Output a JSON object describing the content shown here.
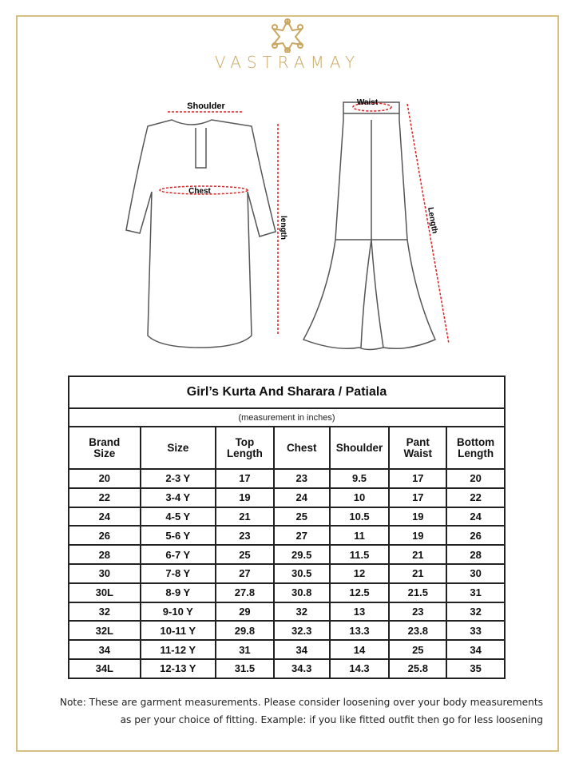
{
  "brand": {
    "name": "VASTRAMAY",
    "accent": "#c9a760"
  },
  "diagram": {
    "shoulder": "Shoulder",
    "chest": "Chest",
    "kurta_length": "length",
    "waist": "Waist",
    "pant_length": "Length"
  },
  "table": {
    "title": "Girl’s Kurta And Sharara / Patiala",
    "subtitle": "(measurement in inches)",
    "headers": [
      [
        "Brand",
        "Size"
      ],
      [
        "Size"
      ],
      [
        "Top",
        "Length"
      ],
      [
        "Chest"
      ],
      [
        "Shoulder"
      ],
      [
        "Pant",
        "Waist"
      ],
      [
        "Bottom",
        "Length"
      ]
    ],
    "rows": [
      [
        "20",
        "2-3 Y",
        "17",
        "23",
        "9.5",
        "17",
        "20"
      ],
      [
        "22",
        "3-4 Y",
        "19",
        "24",
        "10",
        "17",
        "22"
      ],
      [
        "24",
        "4-5 Y",
        "21",
        "25",
        "10.5",
        "19",
        "24"
      ],
      [
        "26",
        "5-6 Y",
        "23",
        "27",
        "11",
        "19",
        "26"
      ],
      [
        "28",
        "6-7 Y",
        "25",
        "29.5",
        "11.5",
        "21",
        "28"
      ],
      [
        "30",
        "7-8 Y",
        "27",
        "30.5",
        "12",
        "21",
        "30"
      ],
      [
        "30L",
        "8-9 Y",
        "27.8",
        "30.8",
        "12.5",
        "21.5",
        "31"
      ],
      [
        "32",
        "9-10 Y",
        "29",
        "32",
        "13",
        "23",
        "32"
      ],
      [
        "32L",
        "10-11 Y",
        "29.8",
        "32.3",
        "13.3",
        "23.8",
        "33"
      ],
      [
        "34",
        "11-12 Y",
        "31",
        "34",
        "14",
        "25",
        "34"
      ],
      [
        "34L",
        "12-13 Y",
        "31.5",
        "34.3",
        "14.3",
        "25.8",
        "35"
      ]
    ]
  },
  "note": [
    "Note: These are garment measurements. Please consider loosening over your body measurements",
    "as per your choice of fitting. Example: if you like fitted outfit then go for less loosening"
  ]
}
